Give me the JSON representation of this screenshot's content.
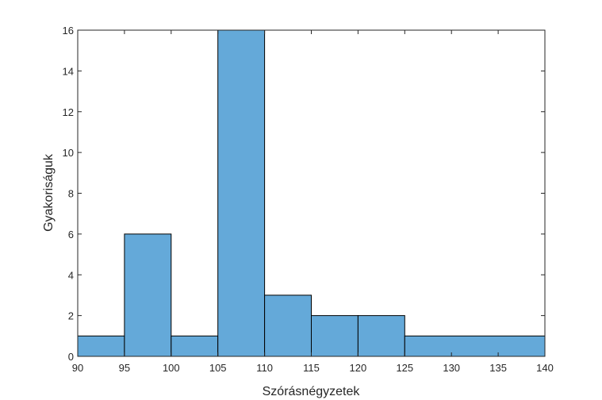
{
  "chart_data": {
    "type": "bar",
    "title": "",
    "xlabel": "Szórásnégyzetek",
    "ylabel": "Gyakoriságuk",
    "bins": [
      {
        "x0": 90,
        "x1": 95,
        "value": 1
      },
      {
        "x0": 95,
        "x1": 100,
        "value": 6
      },
      {
        "x0": 100,
        "x1": 105,
        "value": 1
      },
      {
        "x0": 105,
        "x1": 110,
        "value": 16
      },
      {
        "x0": 110,
        "x1": 115,
        "value": 3
      },
      {
        "x0": 115,
        "x1": 120,
        "value": 2
      },
      {
        "x0": 120,
        "x1": 125,
        "value": 2
      },
      {
        "x0": 125,
        "x1": 140,
        "value": 1
      }
    ],
    "xlim": [
      90,
      140
    ],
    "ylim": [
      0,
      16
    ],
    "xticks": [
      "90",
      "95",
      "100",
      "105",
      "110",
      "115",
      "120",
      "125",
      "130",
      "135",
      "140"
    ],
    "yticks": [
      "0",
      "2",
      "4",
      "6",
      "8",
      "10",
      "12",
      "14",
      "16"
    ],
    "grid": false,
    "colors": {
      "bar_fill": "#64a9d9",
      "bar_edge": "#000000",
      "axis": "#262626"
    }
  }
}
